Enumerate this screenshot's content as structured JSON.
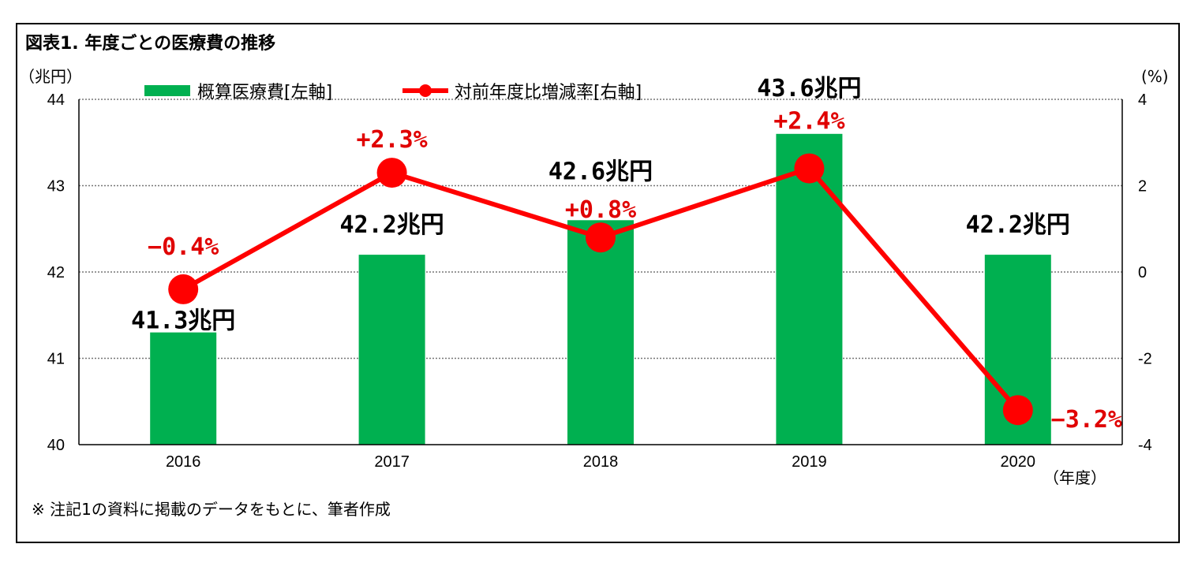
{
  "chart_data": {
    "type": "bar",
    "title": "図表1. 年度ごとの医療費の推移",
    "categories": [
      "2016",
      "2017",
      "2018",
      "2019",
      "2020"
    ],
    "xlabel": "（年度）",
    "ylabel_left": "（兆円）",
    "ylabel_right": "(%)",
    "ylim_left": [
      40,
      44
    ],
    "ylim_right": [
      -4,
      4
    ],
    "yticks_left": [
      "40",
      "41",
      "42",
      "43",
      "44"
    ],
    "yticks_right": [
      "-4",
      "-2",
      "0",
      "2",
      "4"
    ],
    "grid": true,
    "legend_position": "top",
    "series": [
      {
        "name": "概算医療費[左軸]",
        "type": "bar",
        "axis": "left",
        "color": "#00b050",
        "values": [
          41.3,
          42.2,
          42.6,
          43.6,
          42.2
        ],
        "labels": [
          "41.3兆円",
          "42.2兆円",
          "42.6兆円",
          "43.6兆円",
          "42.2兆円"
        ]
      },
      {
        "name": "対前年度比増減率[右軸]",
        "type": "line",
        "axis": "right",
        "color": "#ff0000",
        "values": [
          -0.4,
          2.3,
          0.8,
          2.4,
          -3.2
        ],
        "labels": [
          "−0.4%",
          "+2.3%",
          "+0.8%",
          "+2.4%",
          "−3.2%"
        ]
      }
    ],
    "note": "※ 注記1の資料に掲載のデータをもとに、筆者作成"
  }
}
